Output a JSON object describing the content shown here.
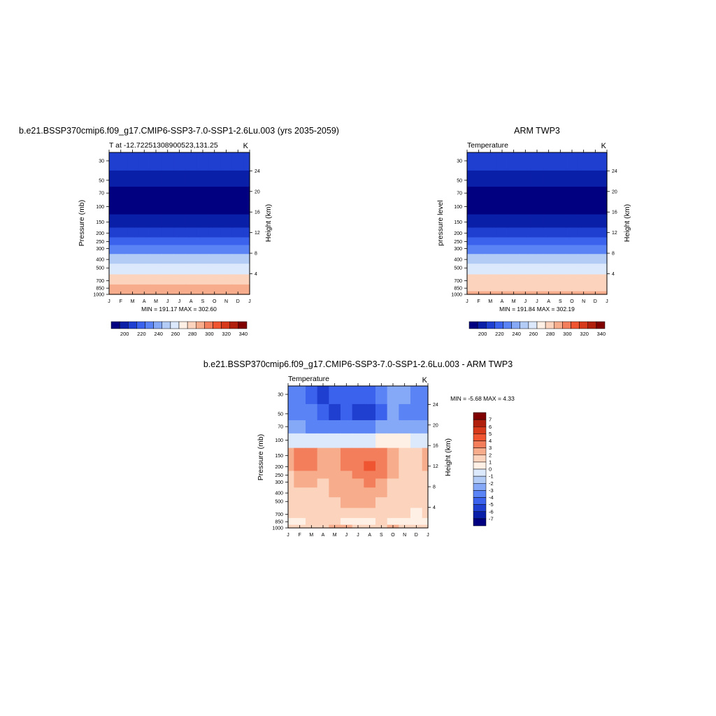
{
  "colors": {
    "temp_scale": [
      "#000080",
      "#0a1fa8",
      "#1f3fd0",
      "#3b62ec",
      "#5a84f5",
      "#86a9f7",
      "#b3ccf6",
      "#dce8fb",
      "#fff0e5",
      "#fcd3bd",
      "#f7ac8c",
      "#f37e5c",
      "#ee5530",
      "#d73a1a",
      "#b0200c",
      "#800000"
    ],
    "diff_scale": [
      "#000080",
      "#0a1fa8",
      "#1f3fd0",
      "#3b62ec",
      "#5a84f5",
      "#86a9f7",
      "#b3ccf6",
      "#dce8fb",
      "#fff0e5",
      "#fcd3bd",
      "#f7ac8c",
      "#f37e5c",
      "#ee5530",
      "#d73a1a",
      "#b0200c",
      "#800000"
    ]
  },
  "chart_data": [
    {
      "type": "heatmap",
      "title": "b.e21.BSSP370cmip6.f09_g17.CMIP6-SSP3-7.0-SSP1-2.6Lu.003 (yrs 2035-2059)",
      "subtitle_left": "T at -12.72251308900523,131.25",
      "subtitle_right": "K",
      "ylabel": "Pressure (mb)",
      "ylabel_right": "Height (km)",
      "x_tick_labels": [
        "J",
        "F",
        "M",
        "A",
        "M",
        "J",
        "J",
        "A",
        "S",
        "O",
        "N",
        "D",
        "J"
      ],
      "y_tick_labels": [
        "30",
        "50",
        "70",
        "100",
        "150",
        "200",
        "250",
        "300",
        "400",
        "500",
        "700",
        "850",
        "1000"
      ],
      "y_right_tick_labels": [
        "24",
        "20",
        "16",
        "12",
        "8",
        "4"
      ],
      "stats": "MIN = 191.17 MAX = 302.60",
      "colorbar_labels": [
        "200",
        "220",
        "240",
        "260",
        "280",
        "300",
        "320",
        "340"
      ],
      "x": [
        "J",
        "F",
        "M",
        "A",
        "M",
        "J",
        "J",
        "A",
        "S",
        "O",
        "N",
        "D",
        "J"
      ],
      "levels_mb": [
        30,
        50,
        70,
        100,
        150,
        200,
        250,
        300,
        400,
        500,
        700,
        850,
        1000
      ],
      "values": [
        [
          212,
          211,
          211,
          211,
          211,
          212,
          212,
          212,
          212,
          212,
          212,
          211,
          212
        ],
        [
          204,
          203,
          202,
          202,
          202,
          202,
          203,
          203,
          203,
          203,
          203,
          203,
          204
        ],
        [
          197,
          196,
          196,
          195,
          195,
          195,
          195,
          195,
          196,
          196,
          196,
          196,
          197
        ],
        [
          194,
          193,
          193,
          193,
          192,
          192,
          192,
          192,
          193,
          193,
          193,
          194,
          194
        ],
        [
          205,
          205,
          205,
          204,
          204,
          204,
          204,
          204,
          204,
          205,
          205,
          205,
          205
        ],
        [
          217,
          217,
          217,
          216,
          216,
          216,
          216,
          216,
          216,
          217,
          217,
          217,
          217
        ],
        [
          227,
          227,
          227,
          226,
          226,
          226,
          226,
          226,
          226,
          227,
          227,
          227,
          227
        ],
        [
          238,
          238,
          238,
          237,
          237,
          237,
          237,
          237,
          237,
          238,
          238,
          238,
          238
        ],
        [
          255,
          255,
          255,
          254,
          254,
          254,
          254,
          254,
          254,
          255,
          255,
          255,
          255
        ],
        [
          268,
          268,
          268,
          267,
          267,
          267,
          267,
          267,
          267,
          268,
          268,
          268,
          268
        ],
        [
          283,
          283,
          283,
          282,
          282,
          282,
          282,
          282,
          282,
          283,
          283,
          283,
          283
        ],
        [
          291,
          291,
          291,
          290,
          290,
          290,
          290,
          290,
          291,
          291,
          291,
          291,
          291
        ],
        [
          299,
          299,
          299,
          298,
          298,
          298,
          298,
          298,
          299,
          299,
          299,
          299,
          299
        ]
      ]
    },
    {
      "type": "heatmap",
      "title": "ARM TWP3",
      "subtitle_left": "Temperature",
      "subtitle_right": "K",
      "ylabel": "pressure level",
      "ylabel_right": "Height (km)",
      "x_tick_labels": [
        "J",
        "F",
        "M",
        "A",
        "M",
        "J",
        "J",
        "A",
        "S",
        "O",
        "N",
        "D",
        "J"
      ],
      "y_tick_labels": [
        "30",
        "50",
        "70",
        "100",
        "150",
        "200",
        "250",
        "300",
        "400",
        "500",
        "700",
        "850",
        "1000"
      ],
      "y_right_tick_labels": [
        "24",
        "20",
        "16",
        "12",
        "8",
        "4"
      ],
      "stats": "MIN = 191.84 MAX = 302.19",
      "colorbar_labels": [
        "200",
        "220",
        "240",
        "260",
        "280",
        "300",
        "320",
        "340"
      ],
      "x": [
        "J",
        "F",
        "M",
        "A",
        "M",
        "J",
        "J",
        "A",
        "S",
        "O",
        "N",
        "D",
        "J"
      ],
      "levels_mb": [
        30,
        50,
        70,
        100,
        150,
        200,
        250,
        300,
        400,
        500,
        700,
        850,
        1000
      ],
      "values": [
        [
          215,
          215,
          214,
          214,
          214,
          214,
          214,
          214,
          214,
          214,
          215,
          215,
          215
        ],
        [
          207,
          206,
          206,
          206,
          205,
          205,
          205,
          205,
          205,
          205,
          206,
          206,
          207
        ],
        [
          198,
          198,
          197,
          197,
          197,
          197,
          197,
          197,
          197,
          197,
          198,
          198,
          198
        ],
        [
          193,
          193,
          193,
          192,
          192,
          192,
          192,
          192,
          192,
          193,
          193,
          193,
          193
        ],
        [
          202,
          202,
          202,
          201,
          201,
          201,
          201,
          201,
          201,
          202,
          202,
          202,
          202
        ],
        [
          214,
          214,
          214,
          213,
          213,
          213,
          213,
          213,
          213,
          214,
          214,
          214,
          214
        ],
        [
          224,
          224,
          224,
          223,
          223,
          223,
          223,
          223,
          223,
          224,
          224,
          224,
          224
        ],
        [
          236,
          236,
          236,
          235,
          235,
          235,
          235,
          235,
          235,
          236,
          236,
          236,
          236
        ],
        [
          254,
          254,
          254,
          253,
          253,
          253,
          253,
          253,
          253,
          254,
          254,
          254,
          254
        ],
        [
          266,
          266,
          266,
          265,
          265,
          265,
          265,
          265,
          265,
          266,
          266,
          266,
          266
        ],
        [
          281,
          281,
          281,
          280,
          280,
          280,
          280,
          280,
          280,
          281,
          281,
          281,
          281
        ],
        [
          289,
          289,
          289,
          288,
          288,
          288,
          288,
          288,
          289,
          289,
          289,
          289,
          289
        ],
        [
          297,
          297,
          297,
          296,
          296,
          296,
          296,
          296,
          297,
          297,
          297,
          297,
          297
        ]
      ]
    },
    {
      "type": "heatmap",
      "title": "b.e21.BSSP370cmip6.f09_g17.CMIP6-SSP3-7.0-SSP1-2.6Lu.003 - ARM TWP3",
      "subtitle_left": "Temperature",
      "subtitle_right": "K",
      "ylabel": "Pressure (mb)",
      "ylabel_right": "Height (km)",
      "x_tick_labels": [
        "J",
        "F",
        "M",
        "A",
        "M",
        "J",
        "J",
        "A",
        "S",
        "O",
        "N",
        "D",
        "J"
      ],
      "y_tick_labels": [
        "30",
        "50",
        "70",
        "100",
        "150",
        "200",
        "250",
        "300",
        "400",
        "500",
        "700",
        "850",
        "1000"
      ],
      "y_right_tick_labels": [
        "24",
        "20",
        "16",
        "12",
        "8",
        "4"
      ],
      "stats": "MIN =  -5.68 MAX =   4.33",
      "colorbar_labels": [
        "7",
        "6",
        "5",
        "4",
        "3",
        "2",
        "1",
        "0",
        "-1",
        "-2",
        "-3",
        "-4",
        "-5",
        "-6",
        "-7"
      ],
      "x": [
        "J",
        "F",
        "M",
        "A",
        "M",
        "J",
        "J",
        "A",
        "S",
        "O",
        "N",
        "D",
        "J"
      ],
      "levels_mb": [
        30,
        50,
        70,
        100,
        150,
        200,
        250,
        300,
        400,
        500,
        700,
        850,
        1000
      ],
      "values": [
        [
          -3.5,
          -3.8,
          -4.2,
          -5.6,
          -4.5,
          -4.2,
          -4.5,
          -4.4,
          -3.8,
          -2.5,
          -3.0,
          -3.2,
          -3.5
        ],
        [
          -3.2,
          -3.6,
          -4.0,
          -4.5,
          -5.2,
          -5.0,
          -5.2,
          -5.5,
          -4.8,
          -2.5,
          -3.5,
          -3.8,
          -3.2
        ],
        [
          -2.5,
          -3.0,
          -3.2,
          -3.5,
          -3.5,
          -3.8,
          -3.8,
          -3.5,
          -3.0,
          -2.5,
          -2.8,
          -3.0,
          -2.5
        ],
        [
          -0.5,
          -0.5,
          -0.3,
          -0.2,
          -0.3,
          -0.5,
          -0.5,
          -0.3,
          0.2,
          0.5,
          0.3,
          -0.2,
          -0.5
        ],
        [
          2.2,
          3.2,
          3.4,
          2.5,
          2.2,
          3.1,
          3.2,
          3.5,
          3.0,
          2.1,
          1.8,
          1.5,
          2.2
        ],
        [
          2.0,
          3.0,
          3.2,
          2.2,
          2.5,
          3.2,
          3.8,
          4.3,
          3.2,
          2.3,
          1.8,
          1.5,
          2.0
        ],
        [
          1.8,
          2.5,
          2.8,
          2.0,
          2.2,
          2.8,
          3.2,
          3.5,
          3.0,
          2.2,
          1.5,
          1.8,
          1.8
        ],
        [
          1.5,
          2.0,
          2.0,
          1.8,
          2.0,
          2.5,
          2.6,
          3.0,
          2.5,
          1.8,
          1.5,
          1.2,
          1.5
        ],
        [
          1.5,
          1.8,
          1.8,
          1.8,
          2.0,
          2.3,
          2.5,
          2.5,
          2.0,
          1.8,
          1.8,
          1.8,
          1.5
        ],
        [
          1.8,
          1.8,
          1.8,
          1.8,
          1.8,
          2.0,
          2.1,
          2.0,
          1.8,
          1.8,
          1.8,
          1.8,
          1.8
        ],
        [
          1.5,
          1.5,
          1.8,
          1.8,
          1.8,
          1.8,
          1.8,
          1.8,
          1.5,
          1.5,
          1.2,
          0.8,
          1.5
        ],
        [
          0.8,
          0.8,
          1.2,
          1.5,
          1.2,
          0.8,
          0.5,
          0.8,
          1.2,
          0.8,
          0.5,
          0.8,
          0.8
        ],
        [
          1.2,
          1.5,
          1.8,
          1.8,
          2.0,
          2.2,
          1.8,
          1.5,
          1.8,
          2.0,
          1.8,
          1.5,
          1.2
        ]
      ]
    }
  ]
}
